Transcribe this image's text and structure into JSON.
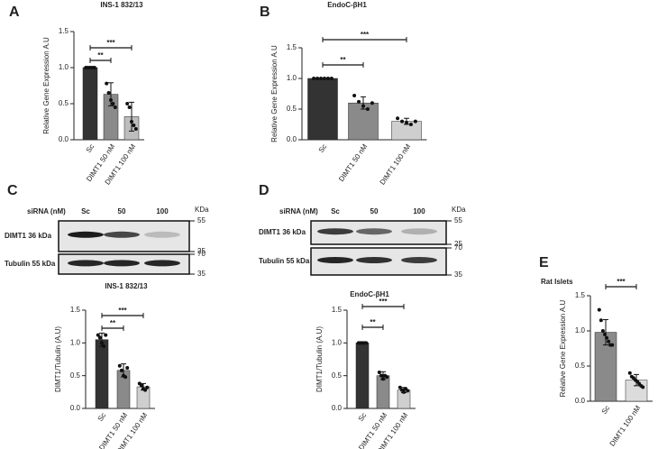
{
  "chart_data": [
    {
      "type": "bar",
      "panel": "A",
      "title": "INS-1 832/13",
      "ylabel": "Relative Gene Expression A.U",
      "categories": [
        "Sc",
        "DIMT1 50 nM",
        "DIMT1 100 nM"
      ],
      "values": [
        1.0,
        0.63,
        0.32
      ],
      "errors": [
        0,
        0.16,
        0.2
      ],
      "points": [
        [
          1.0,
          1.0,
          1.0,
          1.0,
          1.0
        ],
        [
          0.78,
          0.65,
          0.55,
          0.5,
          0.45
        ],
        [
          0.5,
          0.45,
          0.25,
          0.2,
          0.15
        ]
      ],
      "colors": [
        "#333333",
        "#8a8a8a",
        "#bdbdbd"
      ],
      "ylim": [
        0,
        1.5
      ],
      "yticks": [
        {
          "value": 0,
          "label": "0.0"
        },
        {
          "value": 0.5,
          "label": "0.5"
        },
        {
          "value": 1,
          "label": "1.0"
        },
        {
          "value": 1.5,
          "label": "1.5"
        }
      ],
      "annotations": [
        "**",
        "***"
      ]
    },
    {
      "type": "bar",
      "panel": "B",
      "title": "EndoC-βH1",
      "ylabel": "Relative Gene Expression A.U",
      "categories": [
        "Sc",
        "DIMT1 50 nM",
        "DIMT1 100 nM"
      ],
      "values": [
        1.0,
        0.6,
        0.3
      ],
      "errors": [
        0,
        0.1,
        0.05
      ],
      "points": [
        [
          1.0,
          1.0,
          1.0,
          1.0,
          1.0,
          1.0
        ],
        [
          0.72,
          0.62,
          0.55,
          0.5,
          0.6
        ],
        [
          0.35,
          0.3,
          0.28,
          0.25,
          0.3
        ]
      ],
      "colors": [
        "#333333",
        "#8a8a8a",
        "#cfcfcf"
      ],
      "ylim": [
        0,
        1.5
      ],
      "yticks": [
        {
          "value": 0,
          "label": "0.0"
        },
        {
          "value": 0.5,
          "label": "0.5"
        },
        {
          "value": 1,
          "label": "1.0"
        },
        {
          "value": 1.5,
          "label": "1.5"
        }
      ],
      "annotations": [
        "**",
        "***"
      ]
    },
    {
      "type": "bar",
      "title": "INS-1 832/13",
      "ylabel": "DIMT1/Tubulin (A.U)",
      "categories": [
        "Sc",
        "DIMT1 50 nM",
        "DIMT1 100 nM"
      ],
      "values": [
        1.05,
        0.58,
        0.33
      ],
      "errors": [
        0.1,
        0.1,
        0.05
      ],
      "points": [
        [
          1.12,
          1.08,
          1.0,
          0.95,
          1.12
        ],
        [
          0.65,
          0.58,
          0.5,
          0.48,
          0.62
        ],
        [
          0.38,
          0.35,
          0.3,
          0.28,
          0.32
        ]
      ],
      "colors": [
        "#333333",
        "#8a8a8a",
        "#cfcfcf"
      ],
      "ylim": [
        0,
        1.5
      ],
      "yticks": [
        {
          "value": 0,
          "label": "0.0"
        },
        {
          "value": 0.5,
          "label": "0.5"
        },
        {
          "value": 1,
          "label": "1.0"
        },
        {
          "value": 1.5,
          "label": "1.5"
        }
      ],
      "annotations": [
        "**",
        "***"
      ]
    },
    {
      "type": "bar",
      "title": "EndoC-βH1",
      "ylabel": "DIMT1/Tubulin (A.U)",
      "categories": [
        "Sc",
        "DIMT1 50 nM",
        "DIMT1 100 nM"
      ],
      "values": [
        1.0,
        0.5,
        0.28
      ],
      "errors": [
        0,
        0.06,
        0.04
      ],
      "points": [
        [
          1.0,
          1.0,
          1.0,
          1.0,
          1.0
        ],
        [
          0.55,
          0.5,
          0.45,
          0.5,
          0.48
        ],
        [
          0.32,
          0.28,
          0.25,
          0.3,
          0.27
        ]
      ],
      "colors": [
        "#333333",
        "#8a8a8a",
        "#cfcfcf"
      ],
      "ylim": [
        0,
        1.5
      ],
      "yticks": [
        {
          "value": 0,
          "label": "0.0"
        },
        {
          "value": 0.5,
          "label": "0.5"
        },
        {
          "value": 1,
          "label": "1.0"
        },
        {
          "value": 1.5,
          "label": "1.5"
        }
      ],
      "annotations": [
        "**",
        "***"
      ]
    },
    {
      "type": "bar",
      "panel": "E",
      "title": "Rat Islets",
      "ylabel": "Relative Gene Expression A.U",
      "categories": [
        "Sc",
        "DIMT1 100 nM"
      ],
      "values": [
        0.98,
        0.3
      ],
      "errors": [
        0.18,
        0.08
      ],
      "points": [
        [
          1.3,
          1.15,
          1.0,
          0.95,
          0.9,
          0.85,
          0.8,
          0.8
        ],
        [
          0.4,
          0.35,
          0.33,
          0.3,
          0.28,
          0.25,
          0.22,
          0.2
        ]
      ],
      "colors": [
        "#8a8a8a",
        "#dcdcdc"
      ],
      "ylim": [
        0,
        1.5
      ],
      "yticks": [
        {
          "value": 0,
          "label": "0.0"
        },
        {
          "value": 0.5,
          "label": "0.5"
        },
        {
          "value": 1,
          "label": "1.0"
        },
        {
          "value": 1.5,
          "label": "1.5"
        }
      ],
      "annotations": [
        "***"
      ]
    }
  ],
  "blots": [
    {
      "panel": "C",
      "header": "siRNA (nM)",
      "lanes": [
        "Sc",
        "50",
        "100"
      ],
      "unit": "KDa",
      "rows": [
        {
          "label": "DIMT1 36 kDa",
          "markers": [
            55,
            25
          ]
        },
        {
          "label": "Tubulin 55 kDa",
          "markers": [
            70,
            35
          ]
        }
      ]
    },
    {
      "panel": "D",
      "header": "siRNA (nM)",
      "lanes": [
        "Sc",
        "50",
        "100"
      ],
      "unit": "KDa",
      "rows": [
        {
          "label": "DIMT1 36 kDa",
          "markers": [
            55,
            25
          ]
        },
        {
          "label": "Tubulin 55 kDa",
          "markers": [
            70,
            35
          ]
        }
      ]
    }
  ]
}
